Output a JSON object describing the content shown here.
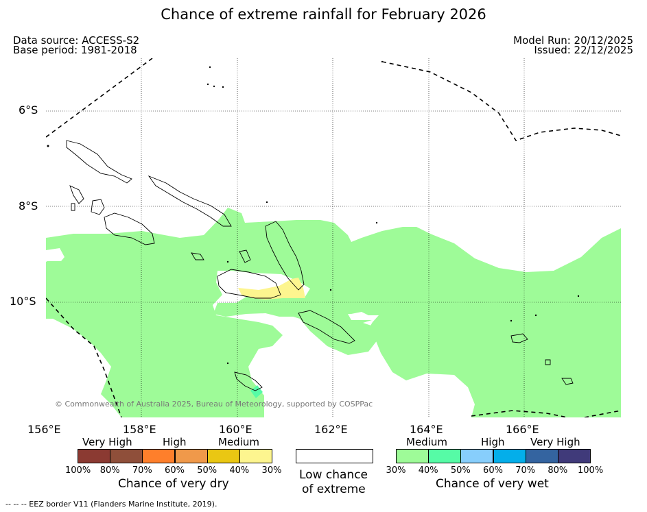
{
  "title": "Chance of extreme rainfall for February 2026",
  "data_source": "Data source: ACCESS-S2",
  "base_period": "Base period: 1981-2018",
  "model_run": "Model Run: 20/12/2025",
  "issued": "Issued: 22/12/2025",
  "lat_labels": [
    "6°S",
    "8°S",
    "10°S"
  ],
  "lon_labels": [
    "156°E",
    "158°E",
    "160°E",
    "162°E",
    "164°E",
    "166°E"
  ],
  "copyright": "© Commonwealth of Australia 2025, Bureau of Meteorology, supported by COSPPac",
  "legend_dry": {
    "headers": [
      "Very High",
      "High",
      "Medium"
    ],
    "colors": [
      "#8b3a32",
      "#8f4f3a",
      "#fe7f2b",
      "#f0994a",
      "#eac713",
      "#fdf58f"
    ],
    "ticks": [
      "100%",
      "80%",
      "70%",
      "60%",
      "50%",
      "40%",
      "30%"
    ],
    "caption": "Chance of very dry"
  },
  "legend_low": {
    "line1": "Low chance",
    "line2": "of extreme",
    "color": "#ffffff"
  },
  "legend_wet": {
    "headers": [
      "Medium",
      "High",
      "Very High"
    ],
    "colors": [
      "#9efb98",
      "#56fba6",
      "#87cefc",
      "#04aeea",
      "#3464a0",
      "#403a7a"
    ],
    "ticks": [
      "30%",
      "40%",
      "50%",
      "60%",
      "70%",
      "80%",
      "100%"
    ],
    "caption": "Chance of very wet"
  },
  "footer": "--  --  -- EEZ border V11 (Flanders Marine Institute, 2019)."
}
